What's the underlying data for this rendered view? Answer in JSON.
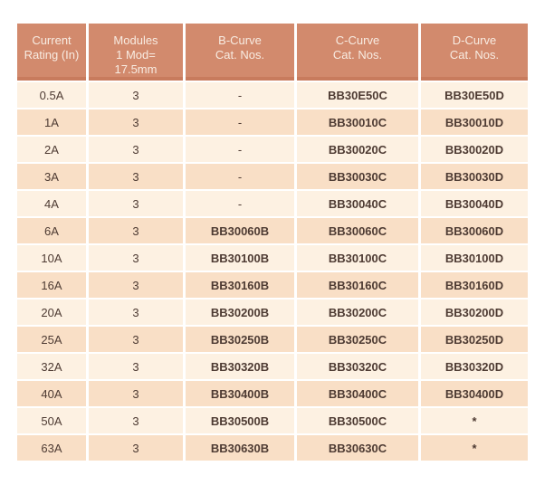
{
  "table": {
    "columns": [
      {
        "label": "Current\nRating (In)"
      },
      {
        "label": "Modules\n1 Mod=\n17.5mm"
      },
      {
        "label": "B-Curve\nCat. Nos."
      },
      {
        "label": "C-Curve\nCat. Nos."
      },
      {
        "label": "D-Curve\nCat. Nos."
      }
    ],
    "rows": [
      [
        "0.5A",
        "3",
        "-",
        "BB30E50C",
        "BB30E50D"
      ],
      [
        "1A",
        "3",
        "-",
        "BB30010C",
        "BB30010D"
      ],
      [
        "2A",
        "3",
        "-",
        "BB30020C",
        "BB30020D"
      ],
      [
        "3A",
        "3",
        "-",
        "BB30030C",
        "BB30030D"
      ],
      [
        "4A",
        "3",
        "-",
        "BB30040C",
        "BB30040D"
      ],
      [
        "6A",
        "3",
        "BB30060B",
        "BB30060C",
        "BB30060D"
      ],
      [
        "10A",
        "3",
        "BB30100B",
        "BB30100C",
        "BB30100D"
      ],
      [
        "16A",
        "3",
        "BB30160B",
        "BB30160C",
        "BB30160D"
      ],
      [
        "20A",
        "3",
        "BB30200B",
        "BB30200C",
        "BB30200D"
      ],
      [
        "25A",
        "3",
        "BB30250B",
        "BB30250C",
        "BB30250D"
      ],
      [
        "32A",
        "3",
        "BB30320B",
        "BB30320C",
        "BB30320D"
      ],
      [
        "40A",
        "3",
        "BB30400B",
        "BB30400C",
        "BB30400D"
      ],
      [
        "50A",
        "3",
        "BB30500B",
        "BB30500C",
        "*"
      ],
      [
        "63A",
        "3",
        "BB30630B",
        "BB30630C",
        "*"
      ]
    ],
    "colors": {
      "header_bg": "#d28a6d",
      "header_accent": "#c87b5d",
      "header_text": "#f8ece2",
      "row_light": "#fdf1e2",
      "row_dark": "#f9dfc6",
      "cell_text": "#4e3b33",
      "page_bg": "#ffffff"
    }
  }
}
